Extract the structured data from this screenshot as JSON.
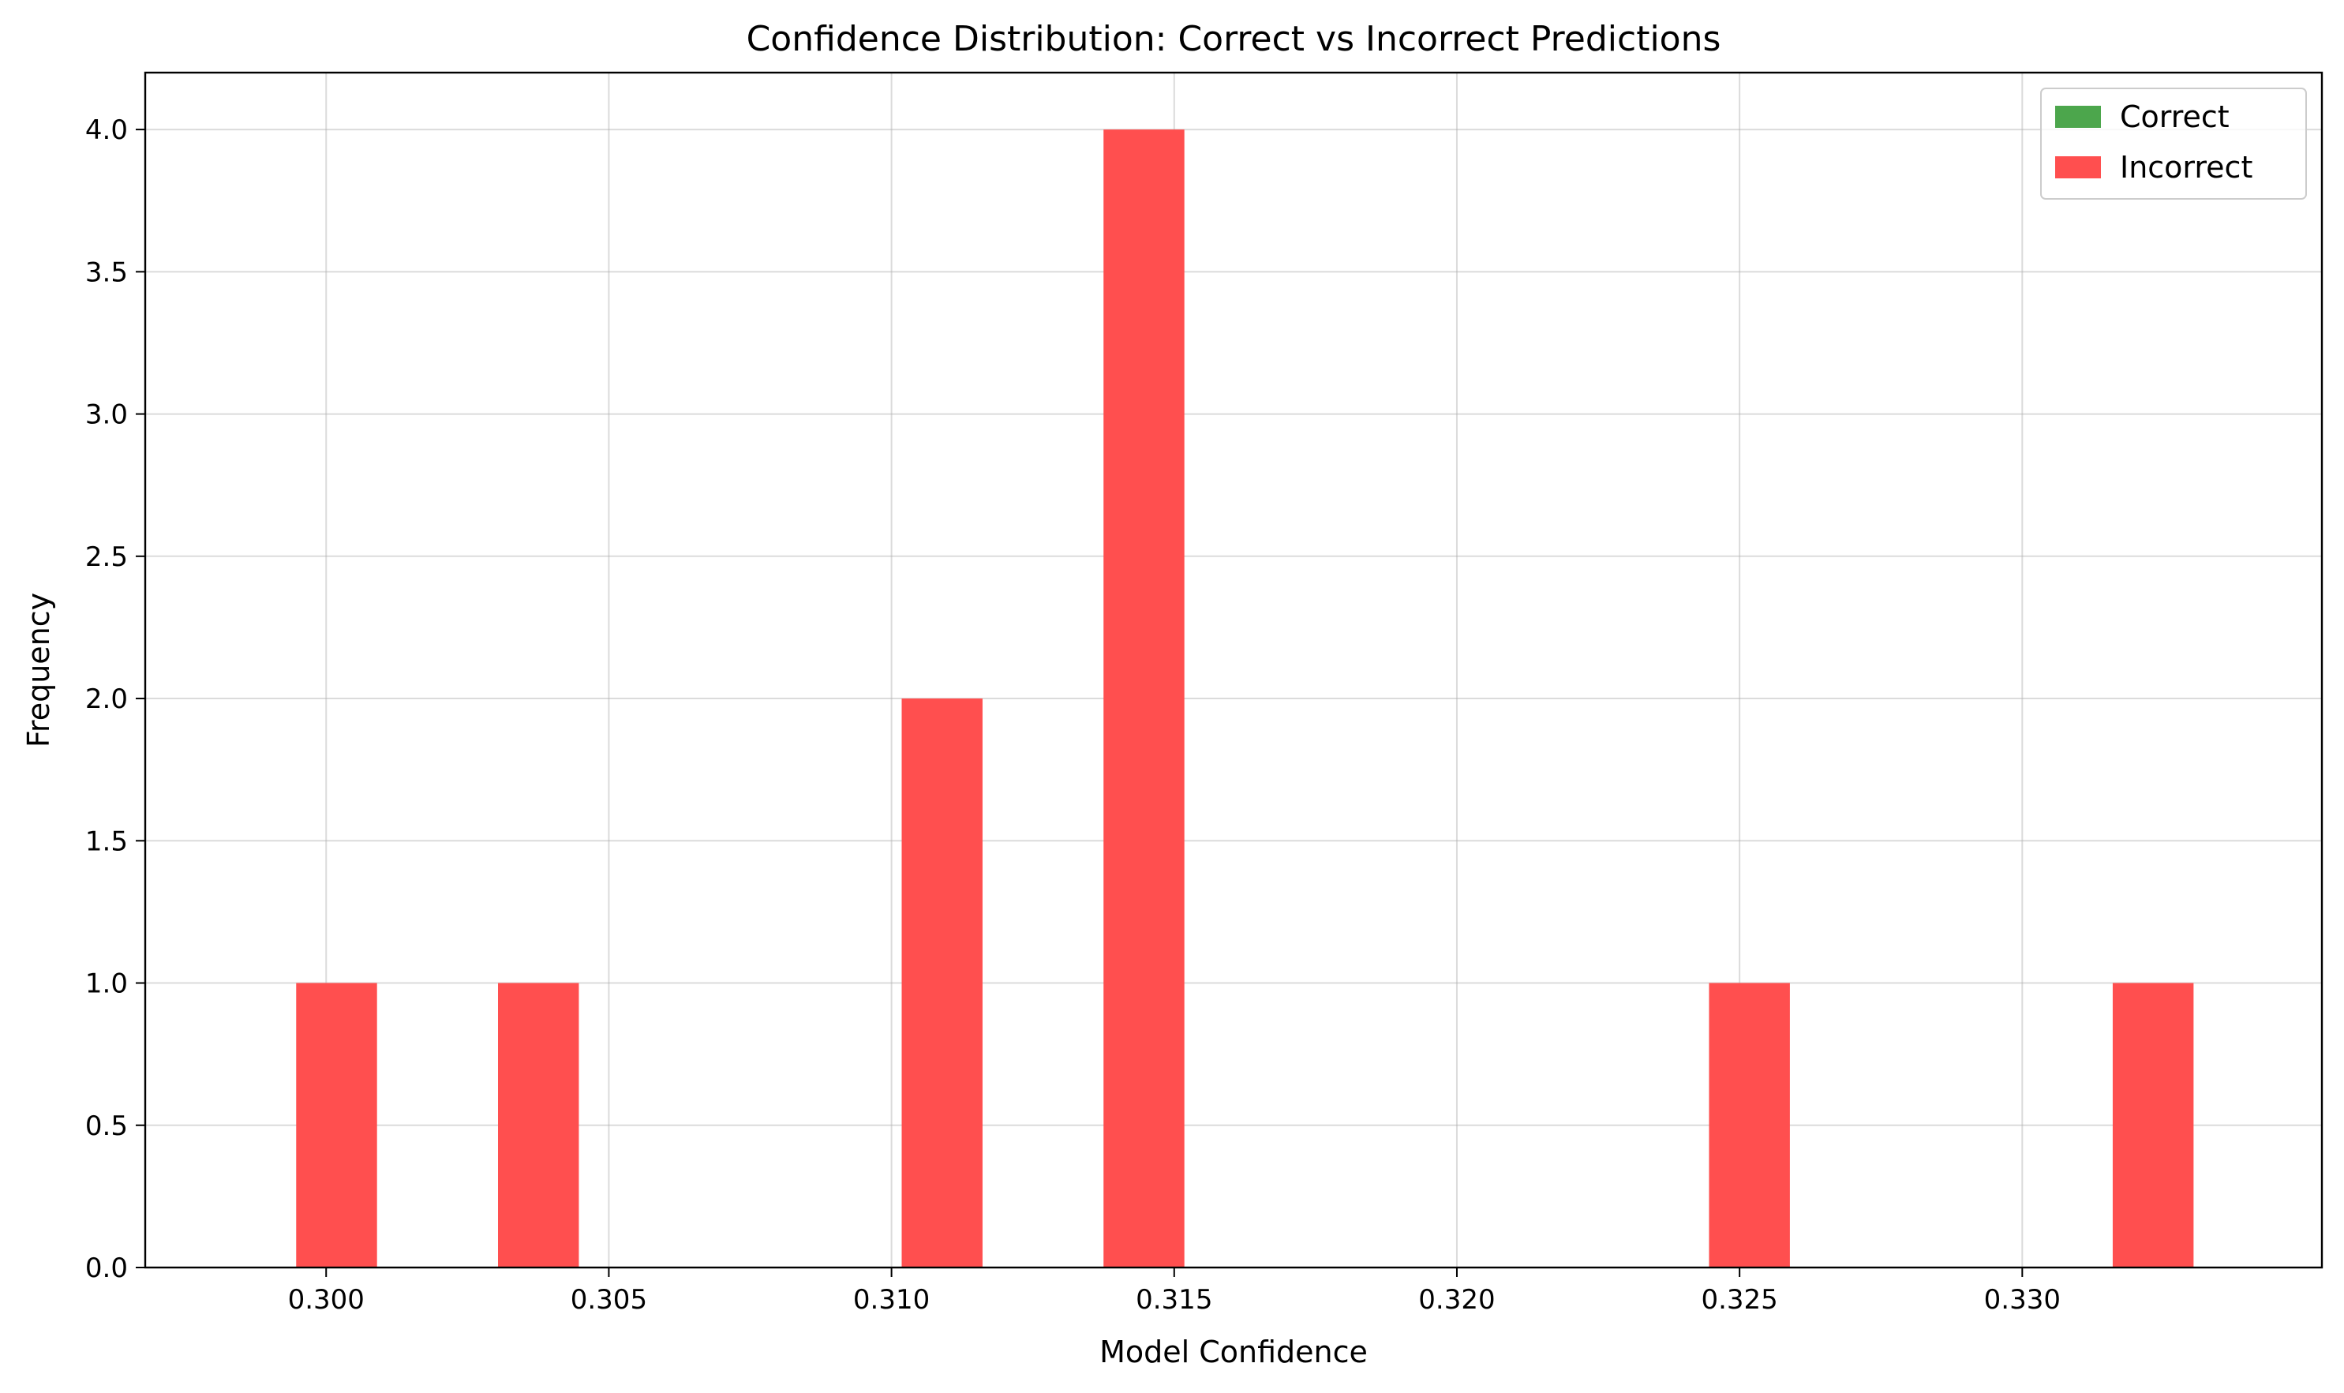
{
  "chart_data": {
    "type": "bar",
    "title": "Confidence Distribution: Correct vs Incorrect Predictions",
    "xlabel": "Model Confidence",
    "ylabel": "Frequency",
    "xlim": [
      0.2968,
      0.3353
    ],
    "ylim": [
      0,
      4.2
    ],
    "xticks": [
      0.3,
      0.305,
      0.31,
      0.315,
      0.32,
      0.325,
      0.33
    ],
    "xtick_labels": [
      "0.300",
      "0.305",
      "0.310",
      "0.315",
      "0.320",
      "0.325",
      "0.330"
    ],
    "yticks": [
      0.0,
      0.5,
      1.0,
      1.5,
      2.0,
      2.5,
      3.0,
      3.5,
      4.0
    ],
    "ytick_labels": [
      "0.0",
      "0.5",
      "1.0",
      "1.5",
      "2.0",
      "2.5",
      "3.0",
      "3.5",
      "4.0"
    ],
    "grid": true,
    "legend_position": "top-right",
    "bin_width": 0.00143,
    "series": [
      {
        "name": "Correct",
        "color": "#4ca64c",
        "bins": []
      },
      {
        "name": "Incorrect",
        "color": "#ff4f4f",
        "bins": [
          {
            "x0": 0.29947,
            "count": 1
          },
          {
            "x0": 0.30304,
            "count": 1
          },
          {
            "x0": 0.31018,
            "count": 2
          },
          {
            "x0": 0.31375,
            "count": 4
          },
          {
            "x0": 0.32446,
            "count": 1
          },
          {
            "x0": 0.3316,
            "count": 1
          }
        ]
      }
    ]
  }
}
